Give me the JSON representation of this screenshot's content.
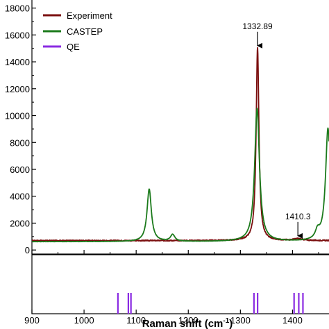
{
  "chart_data": {
    "type": "line",
    "xlabel": "Raman shift (cm",
    "xlabel_sup": "-1",
    "xlabel_end": ")",
    "ylabel": "",
    "xlim": [
      900,
      1470
    ],
    "ylim": [
      -300,
      18600
    ],
    "x_ticks": [
      900,
      1000,
      1100,
      1200,
      1300,
      1400
    ],
    "x_tick_labels": [
      "900",
      "1000",
      "1100",
      "1200",
      "1300",
      "1400"
    ],
    "y_ticks": [
      0,
      2000,
      4000,
      6000,
      8000,
      10000,
      12000,
      14000,
      16000,
      18000
    ],
    "y_tick_labels": [
      "0",
      "2000",
      "4000",
      "6000",
      "8000",
      "10000",
      "12000",
      "14000",
      "16000",
      "18000"
    ],
    "legend_placement": "top-left",
    "grid": false,
    "legend": [
      {
        "name": "Experiment",
        "color": "#7b0f0f"
      },
      {
        "name": "CASTEP",
        "color": "#1b7a1b"
      },
      {
        "name": "QE",
        "color": "#8a2be2"
      }
    ],
    "series": [
      {
        "name": "Experiment",
        "color": "#7b0f0f",
        "baseline": 700,
        "noise": 40,
        "peaks": [
          {
            "x": 1332.89,
            "height": 14400,
            "width": 3.2
          },
          {
            "x": 1410.3,
            "height": 130,
            "width": 10
          }
        ]
      },
      {
        "name": "CASTEP",
        "color": "#1b7a1b",
        "baseline": 620,
        "noise": 10,
        "peaks": [
          {
            "x": 1125,
            "height": 3900,
            "width": 5
          },
          {
            "x": 1170,
            "height": 500,
            "width": 5
          },
          {
            "x": 1332,
            "height": 9900,
            "width": 5.5
          },
          {
            "x": 1448,
            "height": 600,
            "width": 5
          },
          {
            "x": 1468,
            "height": 8400,
            "width": 5.5
          }
        ]
      }
    ],
    "qe_lines": {
      "name": "QE",
      "color": "#8a2be2",
      "x": [
        1065,
        1085,
        1090,
        1326,
        1333,
        1403,
        1412,
        1420
      ]
    },
    "annotations": [
      {
        "text": "1332.89",
        "x": 1332.89,
        "y_tip": 15100
      },
      {
        "text": "1410.3",
        "x": 1410.3,
        "y_tip": 950
      }
    ]
  }
}
